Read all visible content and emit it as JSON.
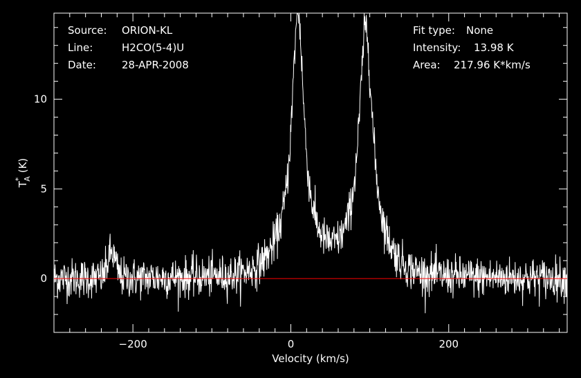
{
  "chart_data": {
    "type": "line",
    "xlabel": "Velocity (km/s)",
    "ylabel": "T*A (K)",
    "xlim": [
      -300,
      350
    ],
    "ylim": [
      -3,
      14.8
    ],
    "x_ticks": [
      -200,
      0,
      200
    ],
    "y_ticks": [
      0,
      5,
      10
    ],
    "baseline": 0,
    "line_color": "#ffffff",
    "baseline_color": "#ff0000",
    "background": "#000000",
    "grid": false,
    "noise_rms": 0.55,
    "features": [
      {
        "kind": "gaussian",
        "center": -227,
        "amplitude": 1.4,
        "width": 5
      },
      {
        "kind": "lorentzian",
        "center": 9,
        "amplitude": 13.3,
        "width": 9
      },
      {
        "kind": "gaussian",
        "center": 9,
        "amplitude": 1.5,
        "width": 28
      },
      {
        "kind": "lorentzian",
        "center": 95,
        "amplitude": 12.5,
        "width": 10
      },
      {
        "kind": "gaussian",
        "center": 95,
        "amplitude": 1.4,
        "width": 26
      }
    ],
    "series": [
      {
        "x": [
          -300,
          -280,
          -260,
          -240,
          -230,
          -225,
          -220,
          -200,
          -150,
          -100,
          -60,
          -40,
          -20,
          -10,
          -5,
          0,
          3,
          6,
          9,
          12,
          15,
          20,
          30,
          45,
          60,
          70,
          78,
          84,
          88,
          92,
          95,
          98,
          102,
          106,
          112,
          120,
          150,
          200,
          250,
          300,
          350
        ],
        "y": [
          0.5,
          0.3,
          0.4,
          0.3,
          1.0,
          1.9,
          0.9,
          0.1,
          0.0,
          0.2,
          0.2,
          0.3,
          0.5,
          1.2,
          2.2,
          4.8,
          8.8,
          12.3,
          13.4,
          11.6,
          7.4,
          3.6,
          1.5,
          0.8,
          0.6,
          1.0,
          2.6,
          5.4,
          8.7,
          11.8,
          12.7,
          11.0,
          6.8,
          4.0,
          2.3,
          0.6,
          0.2,
          0.0,
          0.0,
          0.0,
          0.0
        ]
      }
    ]
  },
  "info": {
    "source_label": "Source:",
    "source_value": "ORION-KL",
    "line_label": "Line:",
    "line_value": "H2CO(5-4)U",
    "date_label": "Date:",
    "date_value": "28-APR-2008",
    "fit_label": "Fit type:",
    "fit_value": "None",
    "intensity_label": "Intensity:",
    "intensity_value": "13.98 K",
    "area_label": "Area:",
    "area_value": "217.96 K*km/s"
  }
}
